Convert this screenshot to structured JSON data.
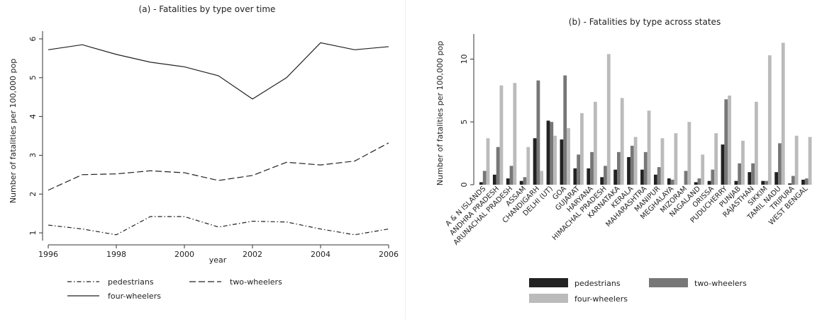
{
  "chart_data": [
    {
      "type": "line",
      "title": "(a) - Fatalities by type over time",
      "xlabel": "year",
      "ylabel": "Number of fatalities per 100,000 pop",
      "x": [
        1996,
        1997,
        1998,
        1999,
        2000,
        2001,
        2002,
        2003,
        2004,
        2005,
        2006
      ],
      "xlim": [
        1996,
        2006
      ],
      "ylim": [
        0.8,
        6.2
      ],
      "xticks": [
        "1996",
        "1998",
        "2000",
        "2002",
        "2004",
        "2006"
      ],
      "yticks": [
        "1",
        "2",
        "3",
        "4",
        "5",
        "6"
      ],
      "legend_position": "bottom",
      "series": [
        {
          "name": "pedestrians",
          "dash": "dash-dot",
          "values": [
            1.2,
            1.1,
            0.95,
            1.42,
            1.42,
            1.15,
            1.3,
            1.28,
            1.1,
            0.95,
            1.1
          ]
        },
        {
          "name": "two-wheelers",
          "dash": "dashed",
          "values": [
            2.1,
            2.5,
            2.52,
            2.6,
            2.55,
            2.35,
            2.48,
            2.82,
            2.75,
            2.85,
            3.32
          ]
        },
        {
          "name": "four-wheelers",
          "dash": "solid",
          "values": [
            5.72,
            5.85,
            5.6,
            5.4,
            5.28,
            5.05,
            4.45,
            5.0,
            5.9,
            5.72,
            5.8
          ]
        }
      ]
    },
    {
      "type": "bar",
      "title": "(b) - Fatalities by type across states",
      "xlabel": "",
      "ylabel": "Number of fatalities per 100,000 pop",
      "ylim": [
        0,
        12
      ],
      "yticks": [
        "0",
        "5",
        "10"
      ],
      "legend_position": "bottom",
      "categories": [
        "A & N ISLANDS",
        "ANDHRA PRADESH",
        "ARUNACHAL PRADESH",
        "ASSAM",
        "CHANDIGARH",
        "DELHI (UT)",
        "GOA",
        "GUJARAT",
        "HARYANA",
        "HIMACHAL PRADESH",
        "KARNATAKA",
        "KERALA",
        "MAHARASHTRA",
        "MANIPUR",
        "MEGHALAYA",
        "MIZORAM",
        "NAGALAND",
        "ORISSA",
        "PUDUCHERRY",
        "PUNJAB",
        "RAJASTHAN",
        "SIKKIM",
        "TAMIL NADU",
        "TRIPURA",
        "WEST BENGAL"
      ],
      "series": [
        {
          "name": "pedestrians",
          "color": "#222222",
          "values": [
            0.2,
            0.8,
            0.5,
            0.3,
            3.7,
            5.1,
            3.6,
            1.3,
            1.3,
            0.6,
            1.2,
            2.2,
            1.2,
            0.8,
            0.5,
            0.0,
            0.2,
            0.3,
            3.2,
            0.3,
            1.0,
            0.3,
            1.0,
            0.1,
            0.4
          ]
        },
        {
          "name": "two-wheelers",
          "color": "#777777",
          "values": [
            1.1,
            3.0,
            1.5,
            0.6,
            8.3,
            5.0,
            8.7,
            2.4,
            2.6,
            1.5,
            2.6,
            3.1,
            2.6,
            1.4,
            0.4,
            1.1,
            0.5,
            1.2,
            6.8,
            1.7,
            1.7,
            0.3,
            3.3,
            0.7,
            0.5
          ]
        },
        {
          "name": "four-wheelers",
          "color": "#bbbbbb",
          "values": [
            3.7,
            7.9,
            8.1,
            3.0,
            1.1,
            3.9,
            4.5,
            5.7,
            6.6,
            10.4,
            6.9,
            3.8,
            5.9,
            3.7,
            4.1,
            5.0,
            2.4,
            4.1,
            7.1,
            3.5,
            6.6,
            10.3,
            11.3,
            3.9,
            3.8
          ]
        }
      ]
    }
  ]
}
